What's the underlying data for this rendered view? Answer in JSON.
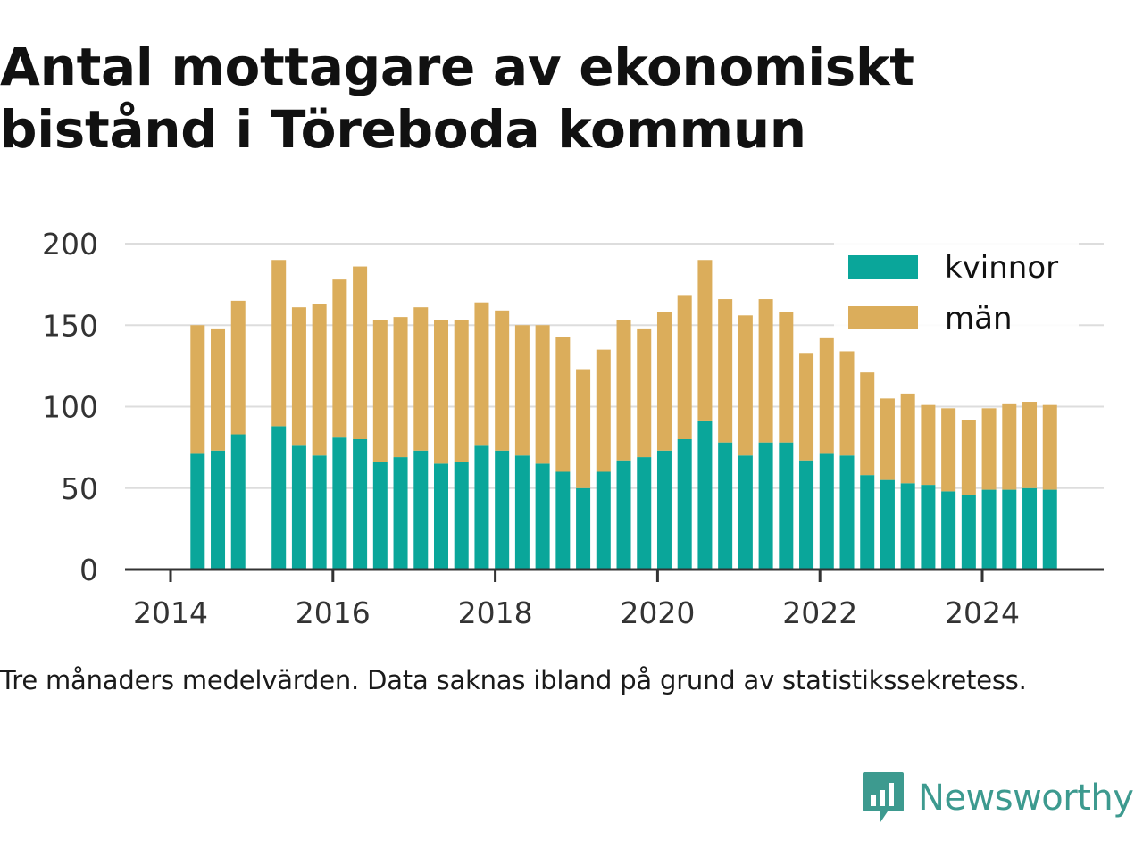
{
  "title": "Antal mottagare av ekonomiskt bistånd i Töreboda kommun",
  "note": "Tre månaders medelvärden. Data saknas ibland på grund av statistikssekretess.",
  "brand": {
    "name": "Newsworthy",
    "color": "#3d9a8f",
    "icon": "newsworthy-logo-icon"
  },
  "chart_data": {
    "type": "bar",
    "stacked": true,
    "x_type": "date",
    "x": [
      "2014-05",
      "2014-08",
      "2014-11",
      "2015-02",
      "2015-05",
      "2015-08",
      "2015-11",
      "2016-02",
      "2016-05",
      "2016-08",
      "2016-11",
      "2017-02",
      "2017-05",
      "2017-08",
      "2017-11",
      "2018-02",
      "2018-05",
      "2018-08",
      "2018-11",
      "2019-02",
      "2019-05",
      "2019-08",
      "2019-11",
      "2020-02",
      "2020-05",
      "2020-08",
      "2020-11",
      "2021-02",
      "2021-05",
      "2021-08",
      "2021-11",
      "2022-02",
      "2022-05",
      "2022-08",
      "2022-11",
      "2023-02",
      "2023-05",
      "2023-08",
      "2023-11",
      "2024-02",
      "2024-05",
      "2024-08",
      "2024-11"
    ],
    "series": [
      {
        "name": "kvinnor",
        "color": "#0aa69a",
        "values": [
          71,
          73,
          83,
          null,
          88,
          76,
          70,
          81,
          80,
          66,
          69,
          73,
          65,
          66,
          76,
          73,
          70,
          65,
          60,
          50,
          60,
          67,
          69,
          73,
          80,
          91,
          78,
          70,
          78,
          78,
          67,
          71,
          70,
          58,
          55,
          53,
          52,
          48,
          46,
          49,
          49,
          50,
          49
        ]
      },
      {
        "name": "män",
        "color": "#dbad5b",
        "values": [
          79,
          75,
          82,
          null,
          102,
          85,
          93,
          97,
          106,
          87,
          86,
          88,
          88,
          87,
          88,
          86,
          80,
          85,
          83,
          73,
          75,
          86,
          79,
          85,
          88,
          99,
          88,
          86,
          88,
          80,
          66,
          71,
          64,
          63,
          50,
          55,
          49,
          51,
          46,
          50,
          53,
          53,
          52
        ]
      }
    ],
    "yticks": [
      0,
      50,
      100,
      150,
      200
    ],
    "xticks": [
      "2014",
      "2016",
      "2018",
      "2020",
      "2022",
      "2024"
    ],
    "ylim": [
      0,
      200
    ],
    "grid": "horizontal",
    "legend_position": "top-right",
    "xlabel": "",
    "ylabel": ""
  }
}
